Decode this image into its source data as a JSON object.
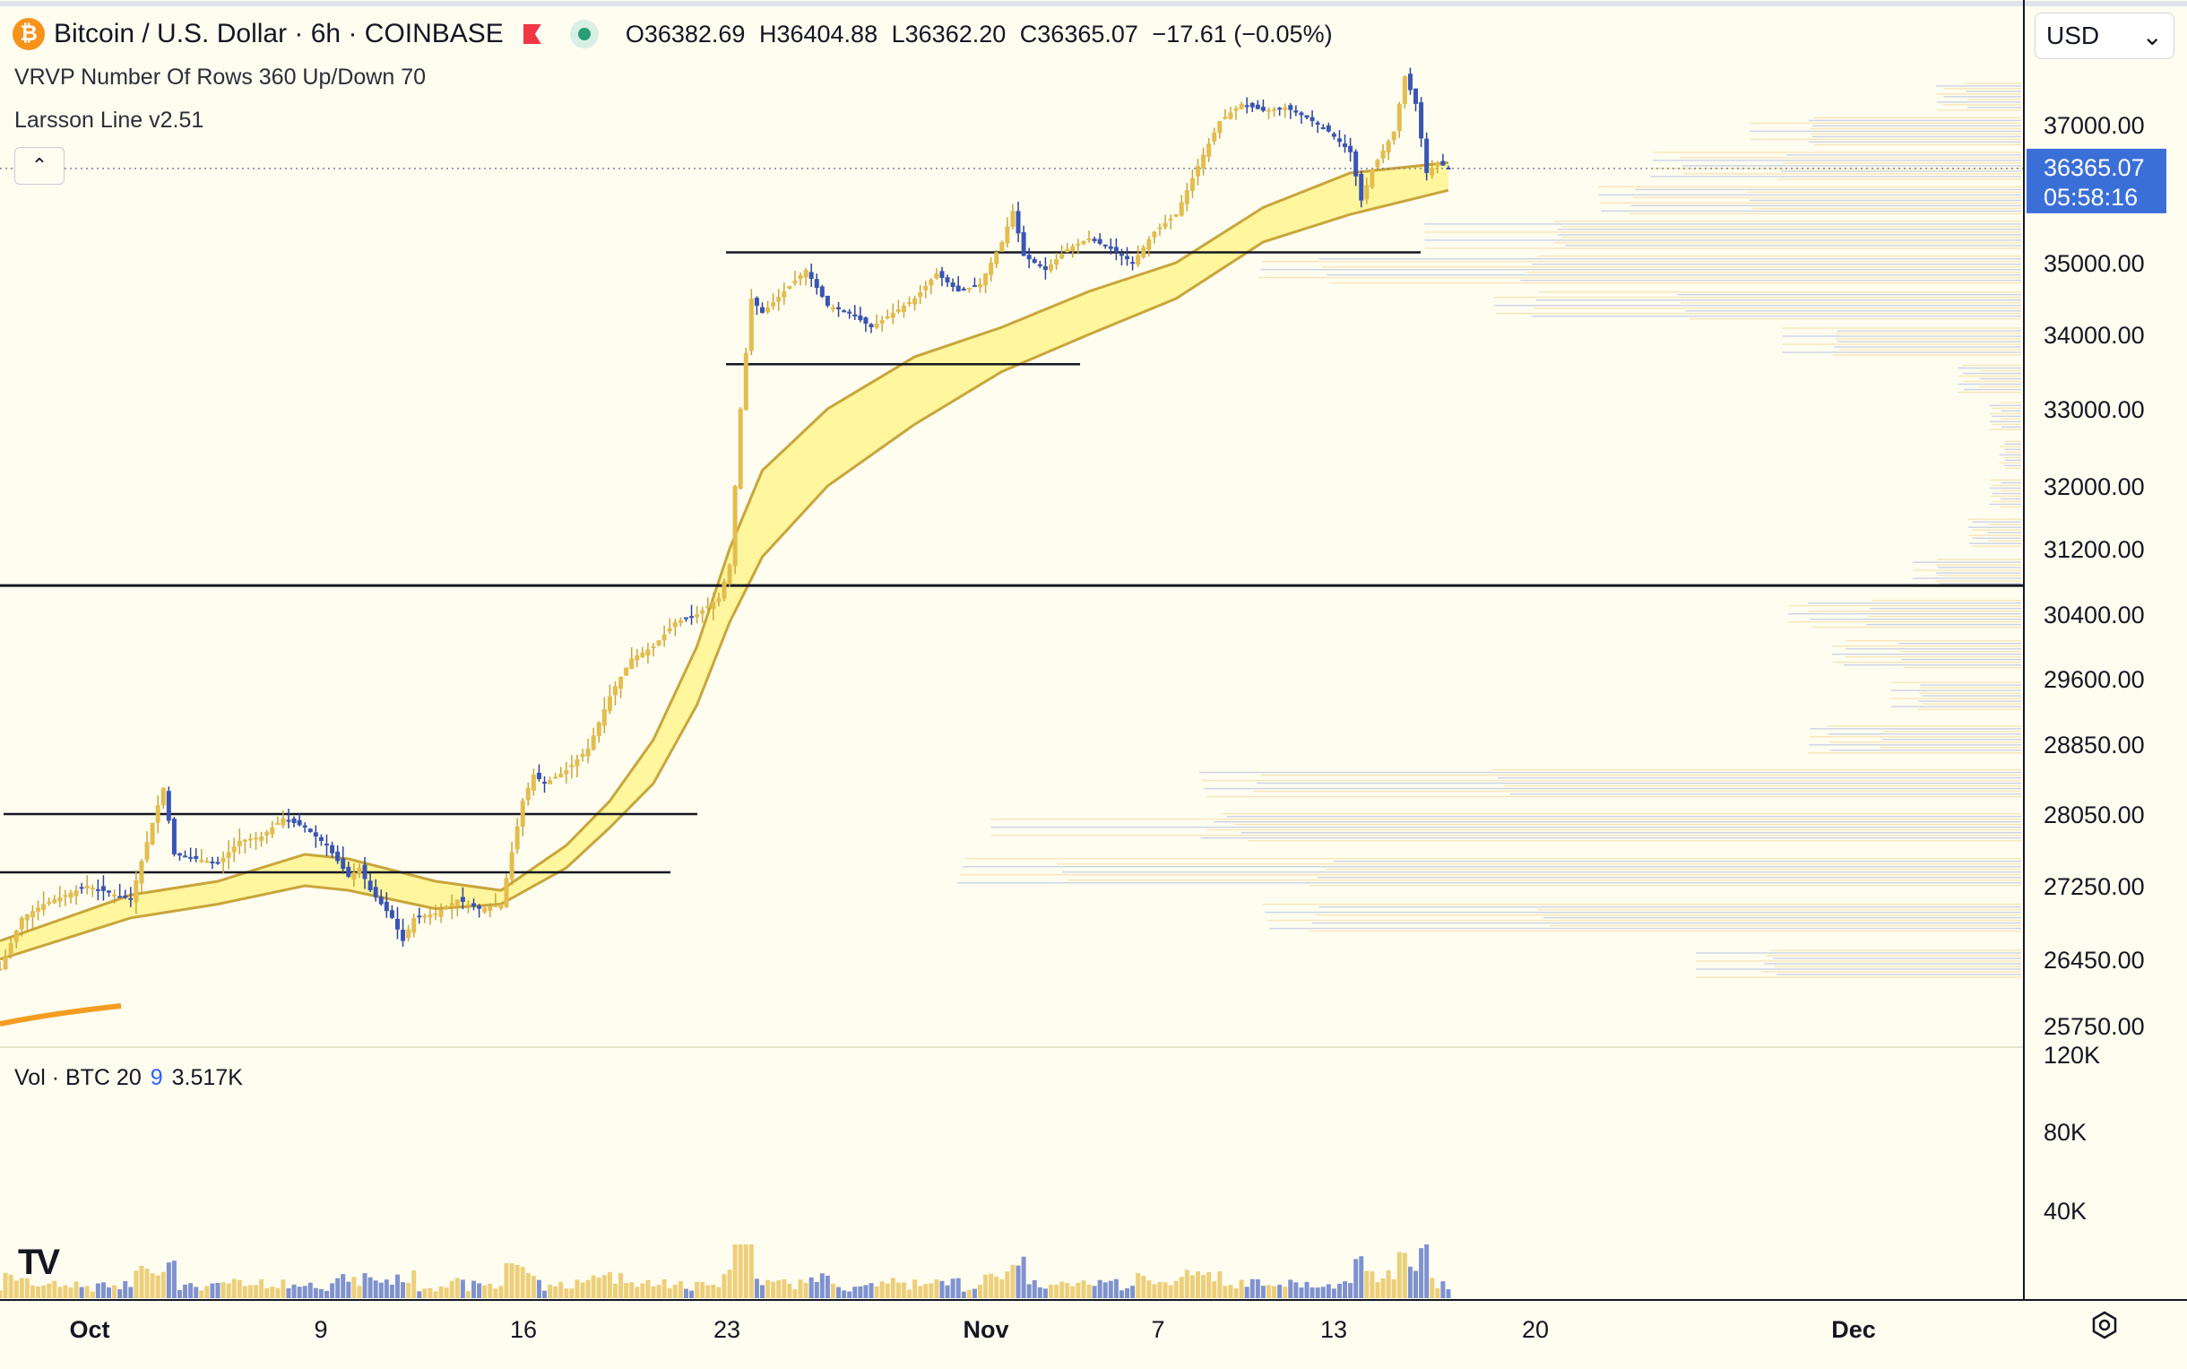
{
  "header": {
    "coin_glyph": "₿",
    "symbol_title": "Bitcoin / U.S. Dollar · 6h · COINBASE",
    "ohlc": {
      "o_label": "O",
      "o": "36382.69",
      "h_label": "H",
      "h": "36404.88",
      "l_label": "L",
      "l": "36362.20",
      "c_label": "C",
      "c": "36365.07",
      "change": "−17.61 (−0.05%)"
    }
  },
  "indicators": {
    "vrvp": "VRVP Number Of Rows 360 Up/Down 70",
    "larsson": "Larsson Line v2.51",
    "collapse_glyph": "⌃"
  },
  "currency_select": {
    "value": "USD",
    "chevron": "⌄"
  },
  "volume_legend": {
    "label": "Vol · BTC 20",
    "value1": "9",
    "value2": "3.517K"
  },
  "logo_text": "TV",
  "colors": {
    "background": "#fffdf0",
    "candle_up": "#e3bd4e",
    "candle_down": "#3955b4",
    "band_fill": "#fff48f",
    "band_edge": "#c9a53b",
    "price_tag": "#3b6fd8",
    "orange_line": "#f39c21"
  },
  "chart_data": {
    "type": "candlestick",
    "title": "Bitcoin / U.S. Dollar · 6h · COINBASE",
    "x_ticks": [
      "Oct",
      "9",
      "16",
      "23",
      "Nov",
      "7",
      "13",
      "20",
      "Dec"
    ],
    "y_ticks": [
      "37000.00",
      "35000.00",
      "34000.00",
      "33000.00",
      "32000.00",
      "31200.00",
      "30400.00",
      "29600.00",
      "28850.00",
      "28050.00",
      "27250.00",
      "26450.00",
      "25750.00"
    ],
    "volume_ticks": [
      "120K",
      "80K",
      "40K"
    ],
    "last_price": "36365.07",
    "countdown": "05:58:16",
    "horizontal_levels": [
      30750,
      35150,
      33600,
      28050,
      27400
    ],
    "price_path": [
      [
        0,
        26350
      ],
      [
        1,
        26900
      ],
      [
        2,
        27050
      ],
      [
        4,
        27250
      ],
      [
        6,
        27100
      ],
      [
        7,
        27950
      ],
      [
        7.5,
        28350
      ],
      [
        8,
        27600
      ],
      [
        9,
        27550
      ],
      [
        10,
        27500
      ],
      [
        11,
        27750
      ],
      [
        12,
        27800
      ],
      [
        13,
        28000
      ],
      [
        14,
        27900
      ],
      [
        15,
        27700
      ],
      [
        16,
        27350
      ],
      [
        16.5,
        27450
      ],
      [
        17,
        27200
      ],
      [
        18,
        26900
      ],
      [
        18.5,
        26650
      ],
      [
        19,
        26900
      ],
      [
        20,
        26950
      ],
      [
        21,
        27100
      ],
      [
        22,
        27000
      ],
      [
        23,
        27050
      ],
      [
        24,
        28200
      ],
      [
        24.5,
        28500
      ],
      [
        25,
        28400
      ],
      [
        26,
        28550
      ],
      [
        27,
        28800
      ],
      [
        28,
        29400
      ],
      [
        29,
        29850
      ],
      [
        30,
        30000
      ],
      [
        31,
        30300
      ],
      [
        32,
        30400
      ],
      [
        33,
        30600
      ],
      [
        33.5,
        31000
      ],
      [
        34,
        33000
      ],
      [
        34.5,
        34500
      ],
      [
        35,
        34300
      ],
      [
        36,
        34600
      ],
      [
        37,
        34900
      ],
      [
        38,
        34400
      ],
      [
        39,
        34300
      ],
      [
        40,
        34100
      ],
      [
        41,
        34300
      ],
      [
        42,
        34500
      ],
      [
        43,
        34850
      ],
      [
        44,
        34600
      ],
      [
        45,
        34700
      ],
      [
        46,
        35300
      ],
      [
        46.5,
        35750
      ],
      [
        47,
        35100
      ],
      [
        48,
        34900
      ],
      [
        49,
        35200
      ],
      [
        50,
        35350
      ],
      [
        51,
        35200
      ],
      [
        52,
        35000
      ],
      [
        53,
        35450
      ],
      [
        54,
        35700
      ],
      [
        55,
        36400
      ],
      [
        56,
        37050
      ],
      [
        57,
        37300
      ],
      [
        58,
        37200
      ],
      [
        59,
        37250
      ],
      [
        60,
        37100
      ],
      [
        61,
        36900
      ],
      [
        62,
        36600
      ],
      [
        62.5,
        35900
      ],
      [
        63,
        36350
      ],
      [
        64,
        36900
      ],
      [
        64.5,
        37700
      ],
      [
        65,
        37300
      ],
      [
        65.5,
        36300
      ],
      [
        66,
        36450
      ],
      [
        66.5,
        36365
      ]
    ],
    "larsson_band": {
      "upper": [
        [
          0,
          26650
        ],
        [
          6,
          27150
        ],
        [
          10,
          27300
        ],
        [
          14,
          27600
        ],
        [
          16,
          27550
        ],
        [
          20,
          27300
        ],
        [
          23,
          27200
        ],
        [
          26,
          27700
        ],
        [
          28,
          28200
        ],
        [
          30,
          28900
        ],
        [
          32,
          30000
        ],
        [
          33.5,
          31200
        ],
        [
          35,
          32200
        ],
        [
          38,
          33000
        ],
        [
          42,
          33700
        ],
        [
          46,
          34100
        ],
        [
          50,
          34600
        ],
        [
          54,
          35000
        ],
        [
          58,
          35800
        ],
        [
          62,
          36300
        ],
        [
          66.5,
          36450
        ]
      ],
      "lower": [
        [
          0,
          26450
        ],
        [
          6,
          26900
        ],
        [
          10,
          27050
        ],
        [
          14,
          27250
        ],
        [
          16,
          27200
        ],
        [
          20,
          27000
        ],
        [
          23,
          27050
        ],
        [
          26,
          27450
        ],
        [
          28,
          27900
        ],
        [
          30,
          28400
        ],
        [
          32,
          29300
        ],
        [
          33.5,
          30300
        ],
        [
          35,
          31100
        ],
        [
          38,
          32000
        ],
        [
          42,
          32800
        ],
        [
          46,
          33500
        ],
        [
          50,
          34000
        ],
        [
          54,
          34500
        ],
        [
          58,
          35300
        ],
        [
          62,
          35700
        ],
        [
          66.5,
          36050
        ]
      ]
    },
    "volume_profile_levels": [
      37400,
      36900,
      36400,
      35900,
      35400,
      34900,
      34400,
      33900,
      33400,
      32900,
      32400,
      31900,
      31400,
      30900,
      30400,
      29900,
      29400,
      28900,
      28400,
      27900,
      27400,
      26900,
      26400
    ],
    "volume_profile_values": [
      0.08,
      0.25,
      0.35,
      0.4,
      0.55,
      0.72,
      0.5,
      0.22,
      0.06,
      0.03,
      0.02,
      0.03,
      0.05,
      0.1,
      0.22,
      0.18,
      0.12,
      0.2,
      0.78,
      0.95,
      1.0,
      0.72,
      0.3
    ]
  }
}
